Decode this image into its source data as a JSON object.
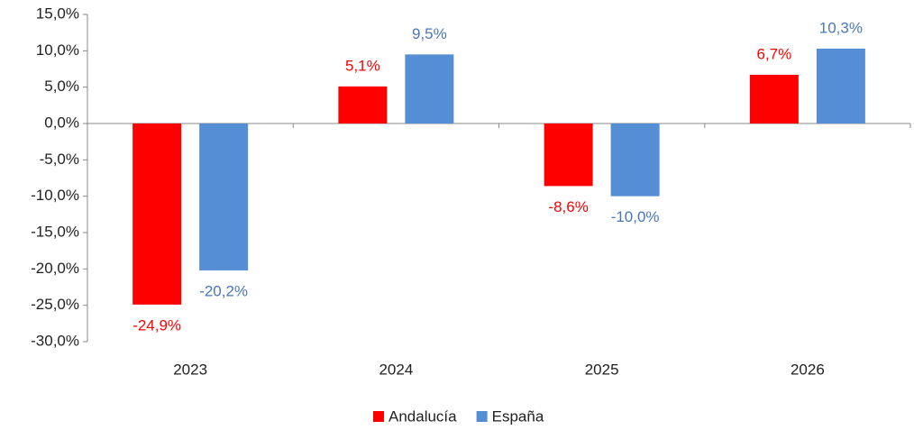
{
  "chart_data": {
    "type": "bar",
    "categories": [
      "2023",
      "2024",
      "2025",
      "2026"
    ],
    "series": [
      {
        "name": "Andalucía",
        "color": "#ff0000",
        "label_color": "#ff0000",
        "values": [
          -24.9,
          5.1,
          -8.6,
          6.7
        ],
        "value_labels": [
          "-24,9%",
          "5,1%",
          "-8,6%",
          "6,7%"
        ]
      },
      {
        "name": "España",
        "color": "#558ed5",
        "label_color": "#4a76b8",
        "values": [
          -20.2,
          9.5,
          -10.0,
          10.3
        ],
        "value_labels": [
          "-20,2%",
          "9,5%",
          "-10,0%",
          "10,3%"
        ]
      }
    ],
    "ylim": [
      -30,
      15
    ],
    "yticks": [
      {
        "value": -30,
        "label": "-30,0%"
      },
      {
        "value": -25,
        "label": "-25,0%"
      },
      {
        "value": -20,
        "label": "-20,0%"
      },
      {
        "value": -15,
        "label": "-15,0%"
      },
      {
        "value": -10,
        "label": "-10,0%"
      },
      {
        "value": -5,
        "label": "-5,0%"
      },
      {
        "value": 0,
        "label": "0,0%"
      },
      {
        "value": 5,
        "label": "5,0%"
      },
      {
        "value": 10,
        "label": "10,0%"
      },
      {
        "value": 15,
        "label": "15,0%"
      }
    ],
    "grid": false,
    "legend": "bottom"
  }
}
